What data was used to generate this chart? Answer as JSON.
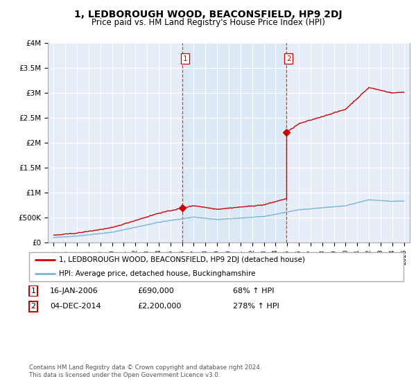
{
  "title": "1, LEDBOROUGH WOOD, BEACONSFIELD, HP9 2DJ",
  "subtitle": "Price paid vs. HM Land Registry's House Price Index (HPI)",
  "title_fontsize": 10,
  "subtitle_fontsize": 8.5,
  "ylim": [
    0,
    4000000
  ],
  "yticks": [
    0,
    500000,
    1000000,
    1500000,
    2000000,
    2500000,
    3000000,
    3500000,
    4000000
  ],
  "ytick_labels": [
    "£0",
    "£500K",
    "£1M",
    "£1.5M",
    "£2M",
    "£2.5M",
    "£3M",
    "£3.5M",
    "£4M"
  ],
  "hpi_color": "#7ab3d8",
  "price_color": "#cc0000",
  "vline_color": "#cc0000",
  "shade_color": "#dce9f5",
  "sale1_year": 2006.04,
  "sale1_price": 690000,
  "sale2_year": 2014.92,
  "sale2_price": 2200000,
  "legend_line1": "1, LEDBOROUGH WOOD, BEACONSFIELD, HP9 2DJ (detached house)",
  "legend_line2": "HPI: Average price, detached house, Buckinghamshire",
  "table_row1": [
    "1",
    "16-JAN-2006",
    "£690,000",
    "68% ↑ HPI"
  ],
  "table_row2": [
    "2",
    "04-DEC-2014",
    "£2,200,000",
    "278% ↑ HPI"
  ],
  "footer": "Contains HM Land Registry data © Crown copyright and database right 2024.\nThis data is licensed under the Open Government Licence v3.0.",
  "grid_color": "#ffffff",
  "plot_bg_color": "#e8eef8"
}
